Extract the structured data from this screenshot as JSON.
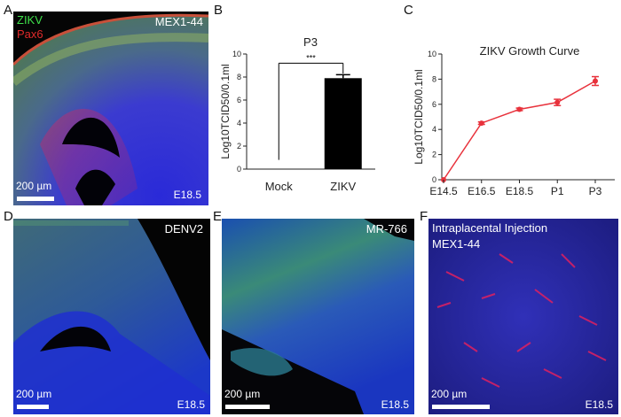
{
  "panels": {
    "A": {
      "letter": "A",
      "stain_green": "ZIKV",
      "stain_red": "Pax6",
      "strain": "MEX1-44",
      "scale": "200 µm",
      "stage": "E18.5"
    },
    "B": {
      "letter": "B"
    },
    "C": {
      "letter": "C"
    },
    "D": {
      "letter": "D",
      "strain": "DENV2",
      "scale": "200 µm",
      "stage": "E18.5"
    },
    "E": {
      "letter": "E",
      "strain": "MR-766",
      "scale": "200 µm",
      "stage": "E18.5"
    },
    "F": {
      "letter": "F",
      "line1": "Intraplacental Injection",
      "line2": "MEX1-44",
      "scale": "200 µm",
      "stage": "E18.5"
    }
  },
  "chart_data": [
    {
      "type": "bar",
      "title": "P3",
      "ylabel": "Log10TCID50/0.1ml",
      "xlabel": "",
      "categories": [
        "Mock",
        "ZIKV"
      ],
      "values": [
        0,
        7.9
      ],
      "errors": [
        0,
        0.3
      ],
      "ylim": [
        0,
        10
      ],
      "yticks": [
        "0",
        "2",
        "4",
        "6",
        "8",
        "10"
      ],
      "significance": "***",
      "bar_color": "#000000"
    },
    {
      "type": "line",
      "title": "ZIKV Growth Curve",
      "ylabel": "Log10TCID50/0.1ml",
      "xlabel": "",
      "categories": [
        "E14.5",
        "E16.5",
        "E18.5",
        "P1",
        "P3"
      ],
      "values": [
        0,
        4.5,
        5.6,
        6.15,
        7.85
      ],
      "errors": [
        0,
        0.1,
        0.1,
        0.25,
        0.35
      ],
      "ylim": [
        0,
        10
      ],
      "yticks": [
        "0",
        "2",
        "4",
        "6",
        "8",
        "10"
      ],
      "color": "#e8323c"
    }
  ]
}
